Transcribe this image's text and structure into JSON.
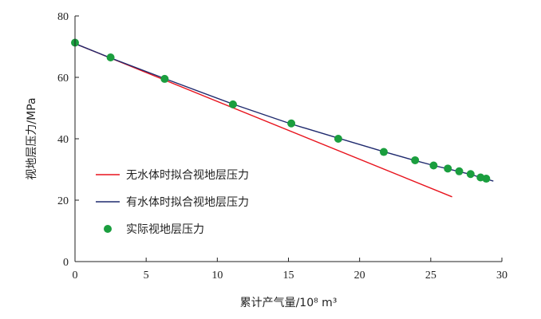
{
  "chart_data": {
    "type": "line",
    "title": "",
    "xlabel": "累计产气量/10⁸ m³",
    "ylabel": "视地层压力/MPa",
    "xlim": [
      0,
      30
    ],
    "ylim": [
      0,
      80
    ],
    "x_ticks": [
      0,
      5,
      10,
      15,
      20,
      25,
      30
    ],
    "y_ticks": [
      0,
      20,
      40,
      60,
      80
    ],
    "grid": false,
    "legend_position": "bottom-left",
    "series": [
      {
        "name": "无水体时拟合视地层压力",
        "kind": "line",
        "color": "#e8131d",
        "x": [
          0,
          26.5
        ],
        "y": [
          71.0,
          21.1
        ]
      },
      {
        "name": "有水体时拟合视地层压力",
        "kind": "line",
        "color": "#1f2a6e",
        "x": [
          0,
          2.5,
          6.3,
          11.1,
          15.2,
          18.5,
          21.7,
          23.9,
          25.2,
          26.2,
          27.0,
          27.8,
          28.5,
          29.4
        ],
        "y": [
          71.0,
          66.3,
          59.6,
          51.3,
          44.8,
          40.2,
          35.8,
          32.9,
          31.3,
          30.2,
          29.3,
          28.4,
          27.4,
          26.2
        ]
      },
      {
        "name": "实际视地层压力",
        "kind": "scatter",
        "color": "#1a9e3e",
        "x": [
          0,
          2.5,
          6.3,
          11.1,
          15.2,
          18.5,
          21.7,
          23.9,
          25.2,
          26.2,
          27.0,
          27.8,
          28.5,
          28.9
        ],
        "y": [
          71.3,
          66.5,
          59.5,
          51.2,
          45.0,
          40.0,
          35.7,
          33.0,
          31.3,
          30.3,
          29.4,
          28.5,
          27.4,
          27.0
        ]
      }
    ]
  }
}
